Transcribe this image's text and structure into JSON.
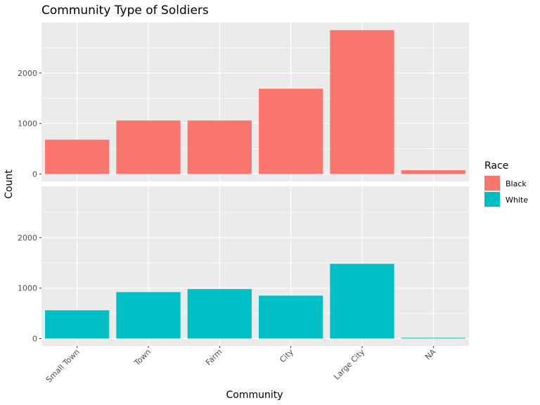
{
  "chart_data": {
    "type": "bar",
    "title": "Community Type of Soldiers",
    "xlabel": "Community",
    "ylabel": "Count",
    "categories": [
      "Small Town",
      "Town",
      "Farm",
      "City",
      "Large City",
      "NA"
    ],
    "ylim": [
      0,
      2850
    ],
    "yticks": [
      0,
      1000,
      2000
    ],
    "yticks_text": [
      "0",
      "1000",
      "2000"
    ],
    "grid": true,
    "legend": {
      "title": "Race",
      "position": "right",
      "entries": [
        {
          "label": "Black",
          "color": "#F8766D"
        },
        {
          "label": "White",
          "color": "#00BFC4"
        }
      ]
    },
    "facets": [
      {
        "name": "Black",
        "color": "#F8766D",
        "values": [
          680,
          1060,
          1060,
          1690,
          2850,
          75
        ]
      },
      {
        "name": "White",
        "color": "#00BFC4",
        "values": [
          560,
          920,
          980,
          850,
          1480,
          15
        ]
      }
    ]
  }
}
